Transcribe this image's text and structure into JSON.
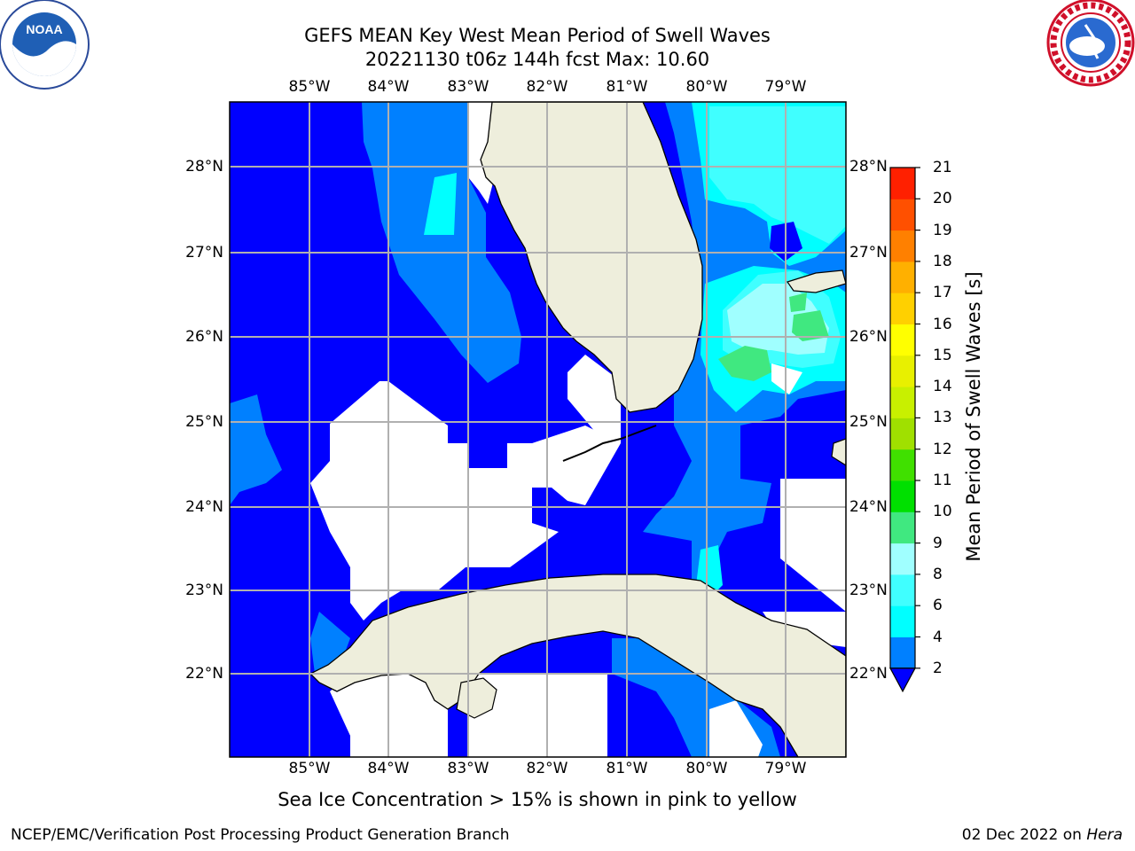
{
  "title": {
    "line1": "GEFS MEAN Key West Mean Period of Swell Waves",
    "line2": "20221130 t06z 144h fcst   Max: 10.60"
  },
  "map": {
    "lon_labels": [
      "85°W",
      "84°W",
      "83°W",
      "82°W",
      "81°W",
      "80°W",
      "79°W"
    ],
    "lat_labels": [
      "28°N",
      "27°N",
      "26°N",
      "25°N",
      "24°N",
      "23°N",
      "22°N"
    ],
    "colors": {
      "land": "#eeeedc",
      "ocean_low": "#0000ff",
      "band_2_4": "#0080ff",
      "band_4_6": "#00ffff",
      "band_6_8": "#40ffff",
      "band_8_9": "#a0ffff",
      "band_9_10": "#40e880",
      "gridline": "#b0b0b0"
    }
  },
  "colorbar": {
    "label": "Mean Period of Swell Waves [s]",
    "ticks": [
      "2",
      "4",
      "6",
      "8",
      "9",
      "10",
      "11",
      "12",
      "13",
      "14",
      "15",
      "16",
      "17",
      "18",
      "19",
      "20",
      "21"
    ],
    "colors": [
      "#0080ff",
      "#00ffff",
      "#40ffff",
      "#a0ffff",
      "#40e880",
      "#00e000",
      "#40e000",
      "#a0e000",
      "#c8f000",
      "#e8f000",
      "#ffff00",
      "#ffd000",
      "#ffb000",
      "#ff8000",
      "#ff5000",
      "#ff2000"
    ],
    "under_color": "#0000ff",
    "over_color": "#ff0000"
  },
  "subcaption": "Sea Ice Concentration > 15% is shown in pink to yellow",
  "footer": {
    "left": "NCEP/EMC/Verification Post Processing Product Generation Branch",
    "date": "02 Dec 2022 on ",
    "host": "Hera"
  },
  "logos": {
    "left": "NOAA",
    "right": "NATIONAL WEATHER SERVICE"
  }
}
